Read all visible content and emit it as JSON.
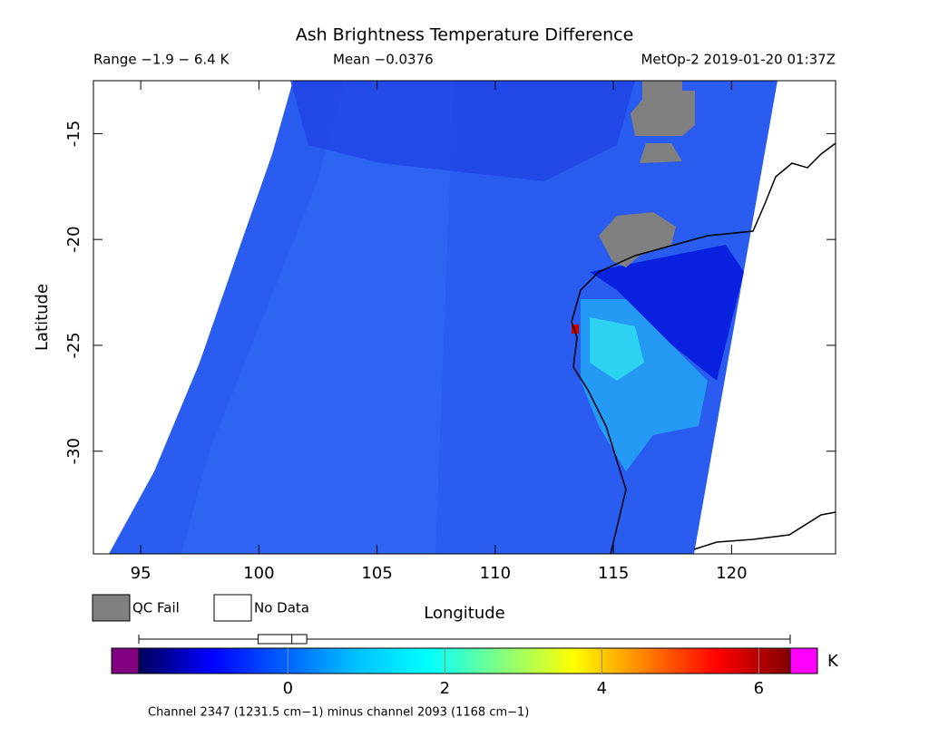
{
  "chart_data": {
    "type": "map",
    "title": "Ash Brightness Temperature Difference",
    "range_label": "Range −1.9 − 6.4 K",
    "mean_label": "Mean −0.0376",
    "source_label": "MetOp-2 2019-01-20 01:37Z",
    "xlabel": "Longitude",
    "ylabel": "Latitude",
    "xlim": [
      93,
      124.4
    ],
    "ylim": [
      -34.85,
      -12.5
    ],
    "xticks": [
      95,
      100,
      105,
      110,
      115,
      120
    ],
    "yticks": [
      -15,
      -20,
      -25,
      -30
    ],
    "legend": [
      {
        "name": "QC Fail",
        "color": "#808080"
      },
      {
        "name": "No Data",
        "color": "#ffffff"
      }
    ],
    "colorbar": {
      "clim": [
        -1.9,
        6.4
      ],
      "ticks": [
        0,
        2,
        4,
        6
      ],
      "unit": "K",
      "colors": [
        "#00005a",
        "#0000ff",
        "#0060ff",
        "#00c0ff",
        "#00ffff",
        "#80ff80",
        "#ffff00",
        "#ff8000",
        "#ff0000",
        "#800000"
      ],
      "under_color": "#800080",
      "over_color": "#ff00ff",
      "caption": "Channel 2347 (1231.5 cm−1) minus channel 2093 (1168 cm−1)"
    },
    "boxplot": {
      "min": -1.9,
      "q1": -0.38,
      "median": 0.05,
      "q3": 0.24,
      "max": 6.4
    }
  }
}
